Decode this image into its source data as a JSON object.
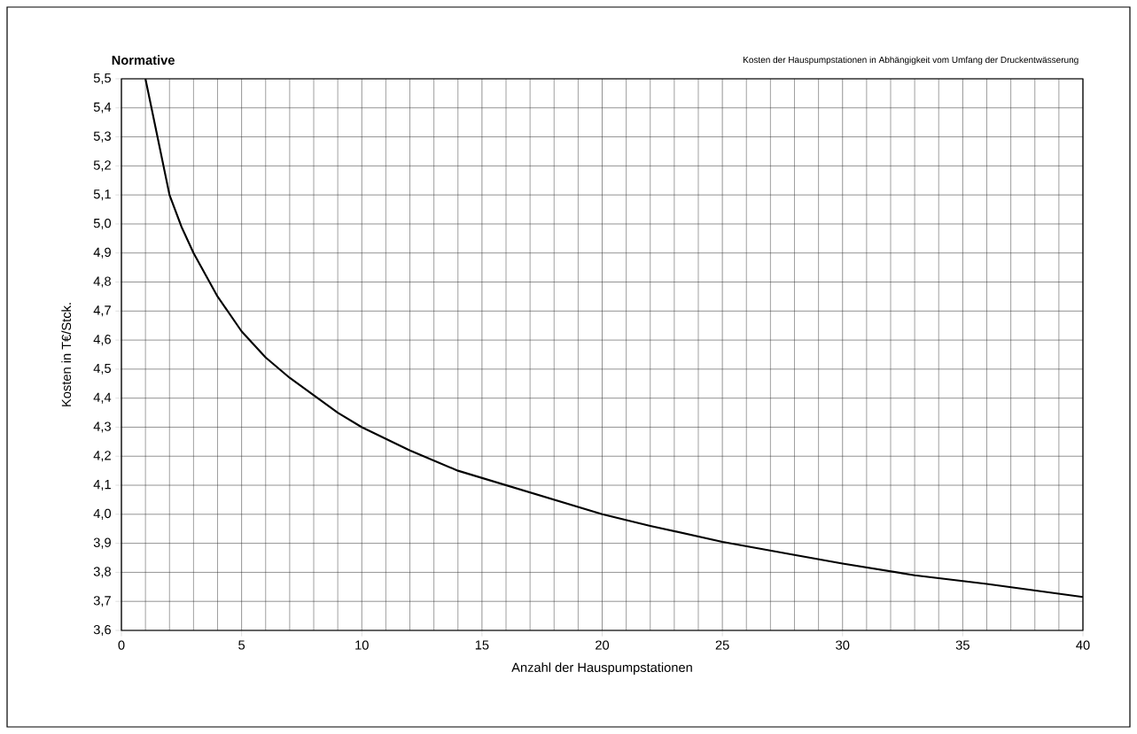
{
  "chart_data": {
    "type": "line",
    "title": "Normative",
    "subtitle": "Kosten der Hauspumpstationen in Abhängigkeit vom Umfang der Druckentwässerung",
    "xlabel": "Anzahl der Hauspumpstationen",
    "ylabel": "Kosten in T€/Stck.",
    "x": [
      1,
      1.5,
      2,
      2.5,
      3,
      4,
      5,
      6,
      7,
      8,
      9,
      10,
      12,
      14,
      16,
      18,
      20,
      22,
      25,
      28,
      30,
      33,
      36,
      40
    ],
    "series": [
      {
        "color": "#000000",
        "values": [
          5.5,
          5.3,
          5.1,
          4.99,
          4.9,
          4.75,
          4.63,
          4.54,
          4.47,
          4.41,
          4.35,
          4.3,
          4.22,
          4.15,
          4.1,
          4.05,
          4.0,
          3.96,
          3.905,
          3.86,
          3.83,
          3.79,
          3.76,
          3.715
        ]
      }
    ],
    "xlim": [
      0,
      40
    ],
    "ylim": [
      3.6,
      5.5
    ],
    "xticks": [
      0,
      5,
      10,
      15,
      20,
      25,
      30,
      35,
      40
    ],
    "yticks": [
      {
        "value": 3.6,
        "label": "3,6"
      },
      {
        "value": 3.7,
        "label": "3,7"
      },
      {
        "value": 3.8,
        "label": "3,8"
      },
      {
        "value": 3.9,
        "label": "3,9"
      },
      {
        "value": 4.0,
        "label": "4,0"
      },
      {
        "value": 4.1,
        "label": "4,1"
      },
      {
        "value": 4.2,
        "label": "4,2"
      },
      {
        "value": 4.3,
        "label": "4,3"
      },
      {
        "value": 4.4,
        "label": "4,4"
      },
      {
        "value": 4.5,
        "label": "4,5"
      },
      {
        "value": 4.6,
        "label": "4,6"
      },
      {
        "value": 4.7,
        "label": "4,7"
      },
      {
        "value": 4.8,
        "label": "4,8"
      },
      {
        "value": 4.9,
        "label": "4,9"
      },
      {
        "value": 5.0,
        "label": "5,0"
      },
      {
        "value": 5.1,
        "label": "5,1"
      },
      {
        "value": 5.2,
        "label": "5,2"
      },
      {
        "value": 5.3,
        "label": "5,3"
      },
      {
        "value": 5.4,
        "label": "5,4"
      },
      {
        "value": 5.5,
        "label": "5,5"
      }
    ],
    "grid": true,
    "marker": "none",
    "line_style": "solid"
  }
}
